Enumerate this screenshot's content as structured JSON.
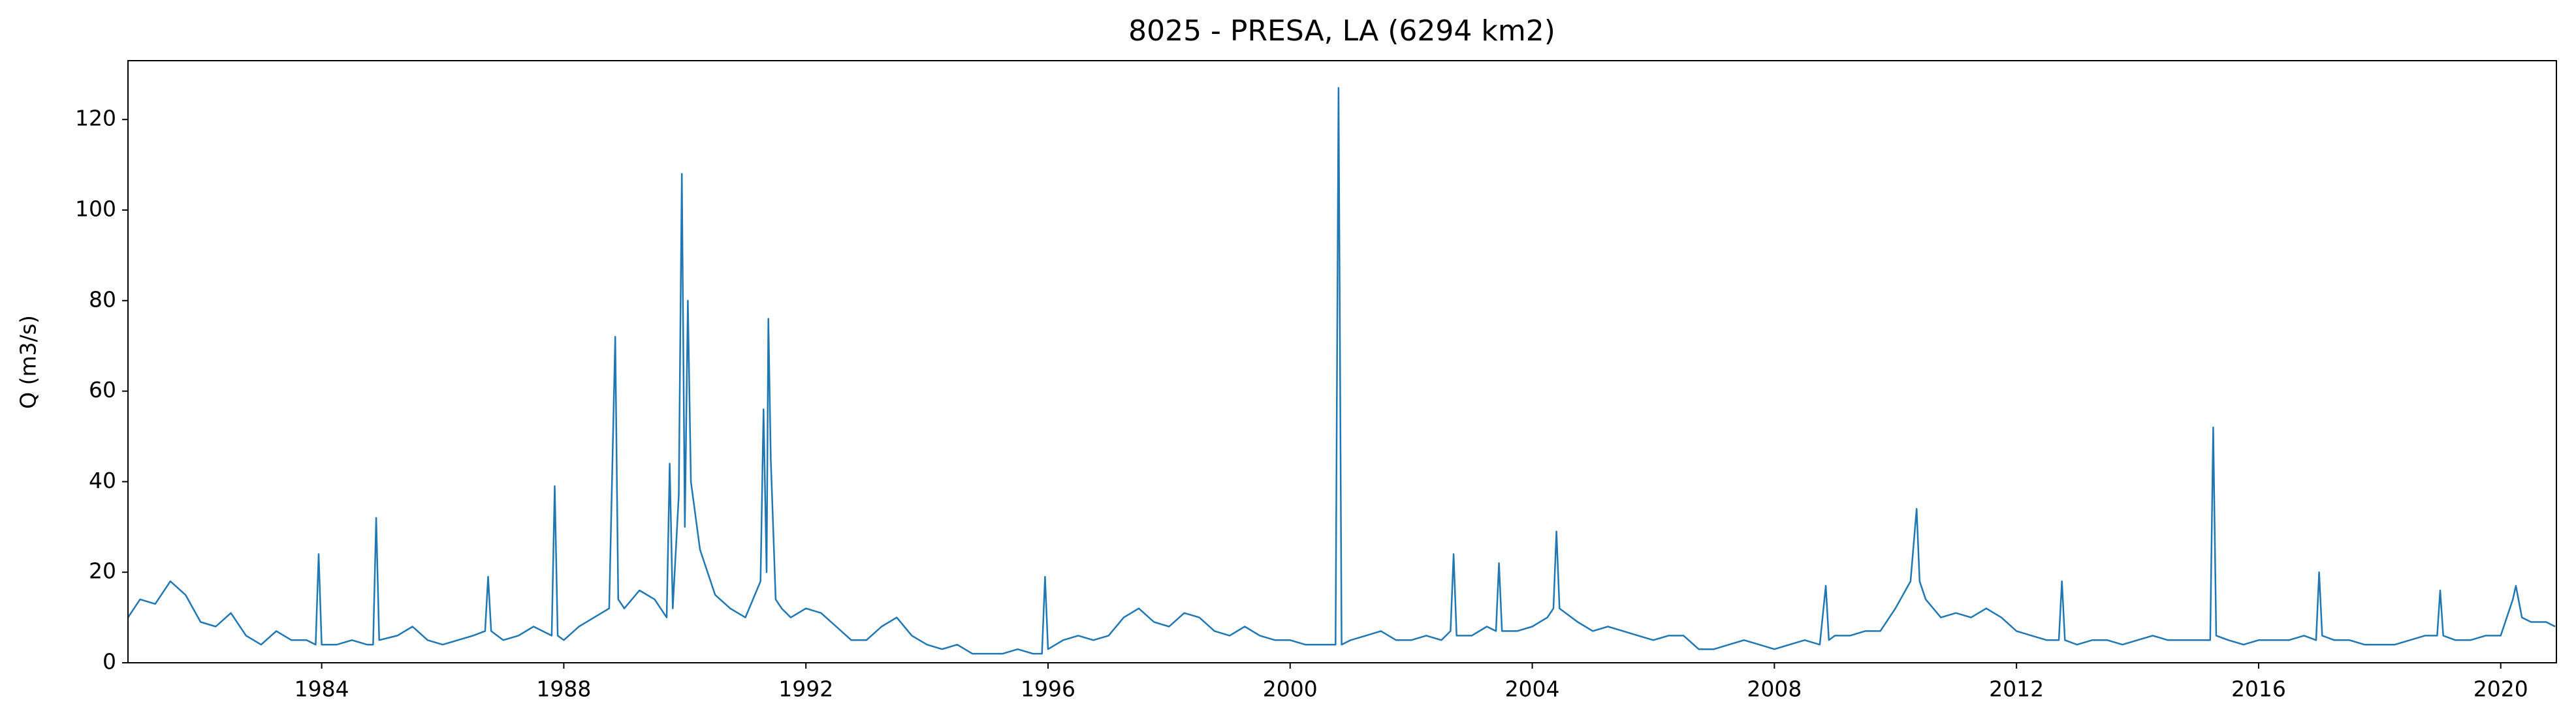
{
  "chart_data": {
    "type": "line",
    "title": "8025 - PRESA, LA (6294 km2)",
    "y_label": "Q (m3/s)",
    "x": [
      1980.8,
      1981.0,
      1981.25,
      1981.5,
      1981.75,
      1982.0,
      1982.25,
      1982.5,
      1982.75,
      1983.0,
      1983.25,
      1983.5,
      1983.75,
      1983.9,
      1983.95,
      1984.0,
      1984.25,
      1984.5,
      1984.75,
      1984.85,
      1984.9,
      1984.95,
      1985.25,
      1985.5,
      1985.75,
      1986.0,
      1986.25,
      1986.5,
      1986.7,
      1986.75,
      1986.8,
      1987.0,
      1987.25,
      1987.5,
      1987.8,
      1987.85,
      1987.9,
      1988.0,
      1988.25,
      1988.5,
      1988.75,
      1988.85,
      1988.9,
      1989.0,
      1989.25,
      1989.5,
      1989.7,
      1989.75,
      1989.8,
      1989.9,
      1989.95,
      1990.0,
      1990.05,
      1990.1,
      1990.25,
      1990.5,
      1990.75,
      1991.0,
      1991.25,
      1991.3,
      1991.35,
      1991.38,
      1991.42,
      1991.5,
      1991.6,
      1991.75,
      1992.0,
      1992.25,
      1992.5,
      1992.75,
      1993.0,
      1993.25,
      1993.5,
      1993.75,
      1994.0,
      1994.25,
      1994.5,
      1994.75,
      1995.0,
      1995.25,
      1995.5,
      1995.75,
      1995.9,
      1995.95,
      1996.0,
      1996.25,
      1996.5,
      1996.75,
      1997.0,
      1997.25,
      1997.5,
      1997.75,
      1998.0,
      1998.25,
      1998.5,
      1998.75,
      1999.0,
      1999.25,
      1999.5,
      1999.75,
      2000.0,
      2000.25,
      2000.5,
      2000.75,
      2000.8,
      2000.85,
      2001.0,
      2001.25,
      2001.5,
      2001.75,
      2002.0,
      2002.25,
      2002.5,
      2002.65,
      2002.7,
      2002.75,
      2003.0,
      2003.25,
      2003.4,
      2003.45,
      2003.5,
      2003.75,
      2004.0,
      2004.25,
      2004.35,
      2004.4,
      2004.45,
      2004.75,
      2005.0,
      2005.25,
      2005.5,
      2005.75,
      2006.0,
      2006.25,
      2006.5,
      2006.75,
      2007.0,
      2007.25,
      2007.5,
      2007.75,
      2008.0,
      2008.25,
      2008.5,
      2008.75,
      2008.85,
      2008.9,
      2009.0,
      2009.25,
      2009.5,
      2009.75,
      2010.0,
      2010.25,
      2010.35,
      2010.4,
      2010.5,
      2010.75,
      2011.0,
      2011.25,
      2011.5,
      2011.75,
      2012.0,
      2012.25,
      2012.5,
      2012.7,
      2012.75,
      2012.8,
      2013.0,
      2013.25,
      2013.5,
      2013.75,
      2014.0,
      2014.25,
      2014.5,
      2014.75,
      2015.0,
      2015.2,
      2015.25,
      2015.3,
      2015.5,
      2015.75,
      2016.0,
      2016.25,
      2016.5,
      2016.75,
      2016.95,
      2017.0,
      2017.05,
      2017.25,
      2017.5,
      2017.75,
      2018.0,
      2018.25,
      2018.5,
      2018.75,
      2018.95,
      2019.0,
      2019.05,
      2019.25,
      2019.5,
      2019.75,
      2020.0,
      2020.2,
      2020.25,
      2020.35,
      2020.5,
      2020.75,
      2020.9
    ],
    "series": [
      {
        "name": "Q",
        "color": "#1f77b4",
        "values": [
          10,
          14,
          13,
          18,
          15,
          9,
          8,
          11,
          6,
          4,
          7,
          5,
          5,
          4,
          24,
          4,
          4,
          5,
          4,
          4,
          32,
          5,
          6,
          8,
          5,
          4,
          5,
          6,
          7,
          19,
          7,
          5,
          6,
          8,
          6,
          39,
          6,
          5,
          8,
          10,
          12,
          72,
          14,
          12,
          16,
          14,
          10,
          44,
          12,
          37,
          108,
          30,
          80,
          40,
          25,
          15,
          12,
          10,
          18,
          56,
          20,
          76,
          45,
          14,
          12,
          10,
          12,
          11,
          8,
          5,
          5,
          8,
          10,
          6,
          4,
          3,
          4,
          2,
          2,
          2,
          3,
          2,
          2,
          19,
          3,
          5,
          6,
          5,
          6,
          10,
          12,
          9,
          8,
          11,
          10,
          7,
          6,
          8,
          6,
          5,
          5,
          4,
          4,
          4,
          127,
          4,
          5,
          6,
          7,
          5,
          5,
          6,
          5,
          7,
          24,
          6,
          6,
          8,
          7,
          22,
          7,
          7,
          8,
          10,
          12,
          29,
          12,
          9,
          7,
          8,
          7,
          6,
          5,
          6,
          6,
          3,
          3,
          4,
          5,
          4,
          3,
          4,
          5,
          4,
          17,
          5,
          6,
          6,
          7,
          7,
          12,
          18,
          34,
          18,
          14,
          10,
          11,
          10,
          12,
          10,
          7,
          6,
          5,
          5,
          18,
          5,
          4,
          5,
          5,
          4,
          5,
          6,
          5,
          5,
          5,
          5,
          52,
          6,
          5,
          4,
          5,
          5,
          5,
          6,
          5,
          20,
          6,
          5,
          5,
          4,
          4,
          4,
          5,
          6,
          6,
          16,
          6,
          5,
          5,
          6,
          6,
          14,
          17,
          10,
          9,
          9,
          8
        ]
      }
    ],
    "xlim": [
      1980.8,
      2020.92
    ],
    "xticks": [
      1984,
      1988,
      1992,
      1996,
      2000,
      2004,
      2008,
      2012,
      2016,
      2020
    ],
    "ylim": [
      0,
      133
    ],
    "yticks": [
      0,
      20,
      40,
      60,
      80,
      100,
      120
    ]
  }
}
